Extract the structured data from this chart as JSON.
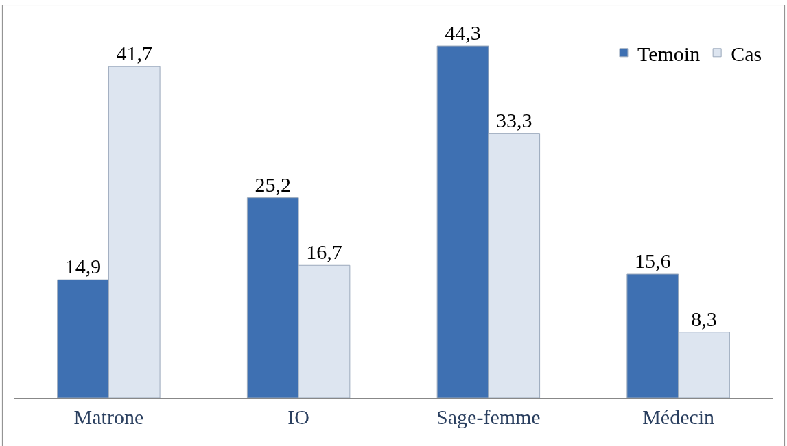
{
  "chart_data": {
    "type": "bar",
    "categories": [
      "Matrone",
      "IO",
      "Sage-femme",
      "Médecin"
    ],
    "series": [
      {
        "name": "Temoin",
        "color": "#3e70b2",
        "values": [
          14.9,
          25.2,
          44.3,
          15.6
        ],
        "value_labels": [
          "14,9",
          "25,2",
          "44,3",
          "15,6"
        ]
      },
      {
        "name": "Cas",
        "color": "#dde5f0",
        "values": [
          41.7,
          16.7,
          33.3,
          8.3
        ],
        "value_labels": [
          "41,7",
          "16,7",
          "33,3",
          "8,3"
        ]
      }
    ],
    "legend": "top right"
  }
}
